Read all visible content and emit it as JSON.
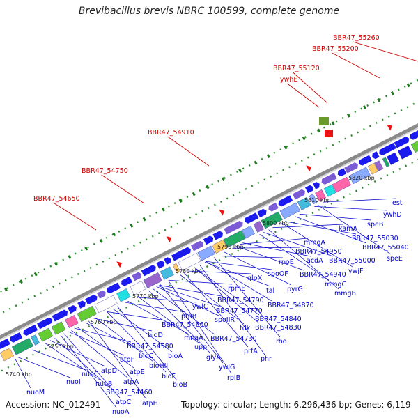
{
  "title": "Brevibacillus brevis NBRC 100599, complete genome",
  "accession": "Accession: NC_012491",
  "topology": "Topology: circular; Length: 6,296,436 bp; Genes: 6,119",
  "colors": {
    "gene_label": "#0000cc",
    "highlight_label": "#cc0000",
    "gene_arrow": "#1a1aee",
    "backbone": "#8a8a8a",
    "dots": "#2e8b2e"
  },
  "kbp_ticks": [
    "5740 kbp",
    "5750 kbp",
    "5760 kbp",
    "5770 kbp",
    "5780 kbp",
    "5790 kbp",
    "5800 kbp",
    "5810 kbp",
    "5820 kbp"
  ],
  "highlight_labels": [
    "BBR47_54650",
    "BBR47_54750",
    "BBR47_54910",
    "BBR47_55120",
    "ywhE",
    "BBR47_55200",
    "BBR47_55260"
  ],
  "gene_labels": [
    "nuoM",
    "nuoI",
    "nuoC",
    "nuoB",
    "nuoA",
    "atpD",
    "atpC",
    "atpF",
    "atpA",
    "BBR47_54460",
    "atpE",
    "atpH",
    "bioD",
    "BBR47_54580",
    "bioC",
    "bioHII",
    "bioF",
    "bioB",
    "bioA",
    "BBR47_54660",
    "mnaA",
    "upp",
    "glyA",
    "ywlG",
    "rpiB",
    "ptpB",
    "ywlC",
    "spoIIR",
    "BBR47_54730",
    "BBR47_54770",
    "BBR47_54790",
    "prfA",
    "tdk",
    "rpmE",
    "phr",
    "rho",
    "BBR47_54830",
    "BBR47_54840",
    "glpX",
    "tal",
    "spoOF",
    "BBR47_54870",
    "pyrG",
    "rpoE",
    "BBR47_54940",
    "mmgC",
    "mmgB",
    "acdA",
    "BBR47_54950",
    "mmgA",
    "ywjF",
    "kamA",
    "BBR47_55000",
    "BBR47_55030",
    "BBR47_55040",
    "speE",
    "speB",
    "ywhD",
    "est"
  ]
}
